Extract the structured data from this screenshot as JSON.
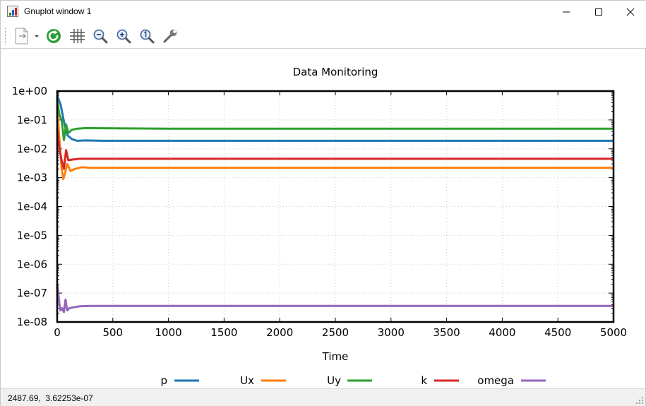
{
  "window": {
    "title": "Gnuplot window 1",
    "controls": {
      "minimize": "—",
      "maximize": "☐",
      "close": "✕"
    }
  },
  "toolbar": {
    "items": [
      {
        "name": "copy-print-options",
        "icon": "document-arrow-icon"
      },
      {
        "name": "replot",
        "icon": "refresh-icon"
      },
      {
        "name": "grid",
        "icon": "grid-icon"
      },
      {
        "name": "zoom-out",
        "icon": "zoom-out-icon"
      },
      {
        "name": "zoom-in",
        "icon": "zoom-in-icon"
      },
      {
        "name": "zoom-autoscale",
        "icon": "zoom-reset-icon"
      },
      {
        "name": "options",
        "icon": "wrench-icon"
      }
    ]
  },
  "status": {
    "coordinates": "2487.69,  3.62253e-07"
  },
  "colors": {
    "p": "#1f77b4",
    "Ux": "#ff7f0e",
    "Uy": "#2ca02c",
    "k": "#d62728",
    "omega": "#9467bd"
  },
  "chart_data": {
    "type": "line",
    "title": "Data Monitoring",
    "xlabel": "Time",
    "ylabel": "",
    "xlim": [
      0,
      5000
    ],
    "ylim": [
      1e-08,
      1
    ],
    "log_y": true,
    "grid": true,
    "legend_position": "bottom",
    "x_ticks": [
      "0",
      "500",
      "1000",
      "1500",
      "2000",
      "2500",
      "3000",
      "3500",
      "4000",
      "4500",
      "5000"
    ],
    "y_ticks": [
      "1e+00",
      "1e-01",
      "1e-02",
      "1e-03",
      "1e-04",
      "1e-05",
      "1e-06",
      "1e-07",
      "1e-08"
    ],
    "series": [
      {
        "name": "p",
        "color": "#1f77b4",
        "x": [
          0,
          30,
          60,
          90,
          130,
          180,
          250,
          400,
          1000,
          2000,
          3000,
          4000,
          5000
        ],
        "y": [
          0.7,
          0.35,
          0.09,
          0.03,
          0.022,
          0.019,
          0.0195,
          0.019,
          0.019,
          0.019,
          0.019,
          0.019,
          0.019
        ]
      },
      {
        "name": "Ux",
        "color": "#ff7f0e",
        "x": [
          0,
          20,
          40,
          55,
          70,
          90,
          120,
          160,
          220,
          300,
          1000,
          2000,
          3000,
          4000,
          5000
        ],
        "y": [
          0.3,
          0.02,
          0.002,
          0.0009,
          0.0014,
          0.003,
          0.0017,
          0.002,
          0.0023,
          0.0022,
          0.0022,
          0.0022,
          0.0022,
          0.0022,
          0.0022
        ]
      },
      {
        "name": "Uy",
        "color": "#2ca02c",
        "x": [
          0,
          20,
          40,
          60,
          80,
          100,
          130,
          180,
          250,
          1000,
          2000,
          3000,
          4000,
          5000
        ],
        "y": [
          0.5,
          0.15,
          0.1,
          0.02,
          0.07,
          0.035,
          0.045,
          0.05,
          0.052,
          0.05,
          0.05,
          0.05,
          0.05,
          0.05
        ]
      },
      {
        "name": "k",
        "color": "#d62728",
        "x": [
          0,
          20,
          40,
          60,
          80,
          100,
          130,
          200,
          300,
          1000,
          2000,
          3000,
          4000,
          5000
        ],
        "y": [
          0.05,
          0.01,
          0.004,
          0.002,
          0.009,
          0.004,
          0.0042,
          0.0045,
          0.0045,
          0.0045,
          0.0045,
          0.0045,
          0.0045,
          0.0045
        ]
      },
      {
        "name": "omega",
        "color": "#9467bd",
        "x": [
          0,
          10,
          20,
          30,
          45,
          60,
          75,
          90,
          110,
          140,
          200,
          300,
          1000,
          2000,
          3000,
          4000,
          5000
        ],
        "y": [
          2e-07,
          1e-07,
          4e-08,
          2.5e-08,
          3e-08,
          2.2e-08,
          6e-08,
          2.5e-08,
          3e-08,
          3.2e-08,
          3.5e-08,
          3.6e-08,
          3.6e-08,
          3.6e-08,
          3.6e-08,
          3.6e-08,
          3.6e-08
        ]
      }
    ]
  }
}
